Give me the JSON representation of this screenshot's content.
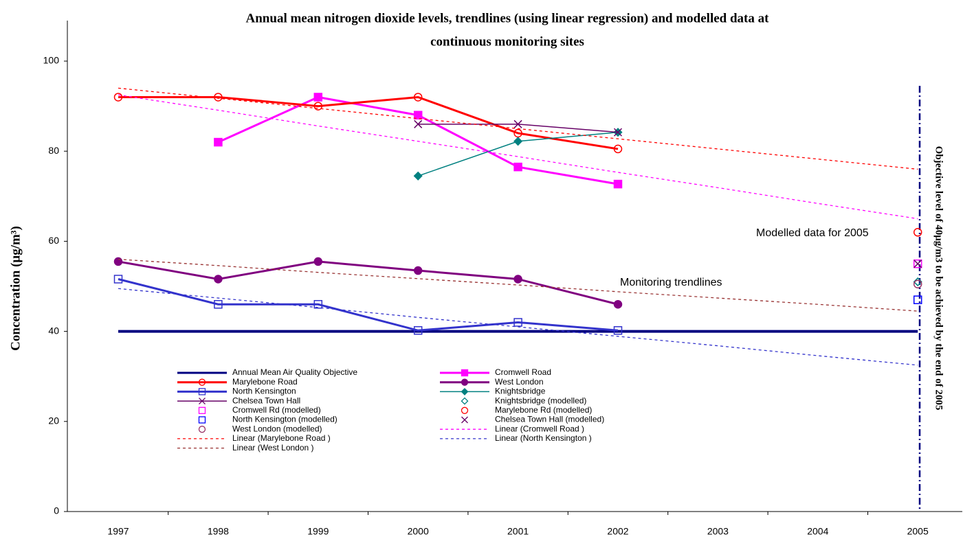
{
  "chart_data": {
    "type": "line",
    "title": [
      "Annual mean nitrogen dioxide levels, trendlines (using linear regression) and modelled data at",
      "continuous monitoring sites"
    ],
    "y_label": "Concentration (μg/m³)",
    "annotations": [
      "Modelled data for 2005",
      "Monitoring trendlines",
      "Objective level of 40μg/m3 to be achieved by the end of 2005"
    ],
    "categories": [
      "1997",
      "1998",
      "1999",
      "2000",
      "2001",
      "2002",
      "2003",
      "2004",
      "2005"
    ],
    "ylim": [
      0,
      100
    ],
    "yticks": [
      0,
      20,
      40,
      60,
      80,
      100
    ],
    "grid": false,
    "series": [
      {
        "name": "Annual Mean Air Quality Objective",
        "color": "#000080",
        "line_width": 4,
        "dash": false,
        "show_line": true,
        "marker": null,
        "marker_fill": false,
        "values": [
          40,
          40,
          40,
          40,
          40,
          40,
          40,
          40,
          40
        ]
      },
      {
        "name": "Cromwell Road",
        "color": "#ff00ff",
        "line_width": 3,
        "dash": false,
        "show_line": true,
        "marker": "square",
        "marker_fill": true,
        "values": [
          null,
          82,
          92,
          88,
          76.5,
          72.7,
          null,
          null,
          null
        ]
      },
      {
        "name": "Marylebone Road",
        "color": "#ff0000",
        "line_width": 3,
        "dash": false,
        "show_line": true,
        "marker": "circle",
        "marker_fill": false,
        "values": [
          92,
          92,
          90,
          92,
          84,
          80.5,
          null,
          null,
          null
        ]
      },
      {
        "name": "West London",
        "color": "#800080",
        "line_width": 3,
        "dash": false,
        "show_line": true,
        "marker": "circle",
        "marker_fill": true,
        "values": [
          55.5,
          51.6,
          55.5,
          53.5,
          51.6,
          46,
          null,
          null,
          null
        ]
      },
      {
        "name": "North Kensington",
        "color": "#3333cc",
        "line_width": 3,
        "dash": false,
        "show_line": true,
        "marker": "square",
        "marker_fill": false,
        "values": [
          51.6,
          46,
          46,
          40.2,
          42,
          40.2,
          null,
          null,
          null
        ]
      },
      {
        "name": "Knightsbridge",
        "color": "#008080",
        "line_width": 1.5,
        "dash": false,
        "show_line": true,
        "marker": "diamond",
        "marker_fill": true,
        "values": [
          null,
          null,
          null,
          74.5,
          82.2,
          84.2,
          null,
          null,
          null
        ]
      },
      {
        "name": "Chelsea Town Hall",
        "color": "#660066",
        "line_width": 1.5,
        "dash": false,
        "show_line": true,
        "marker": "x",
        "marker_fill": false,
        "values": [
          null,
          null,
          null,
          86,
          86,
          84.2,
          null,
          null,
          null
        ]
      },
      {
        "name": "Knightsbridge (modelled)",
        "color": "#008080",
        "line_width": 1,
        "dash": false,
        "show_line": false,
        "marker": "diamond",
        "marker_fill": false,
        "values": [
          null,
          null,
          null,
          null,
          null,
          null,
          null,
          null,
          51
        ]
      },
      {
        "name": "Cromwell Rd (modelled)",
        "color": "#ff00ff",
        "line_width": 1,
        "dash": false,
        "show_line": false,
        "marker": "square",
        "marker_fill": false,
        "values": [
          null,
          null,
          null,
          null,
          null,
          null,
          null,
          null,
          55
        ]
      },
      {
        "name": "Marylebone Rd (modelled)",
        "color": "#ff0000",
        "line_width": 1,
        "dash": false,
        "show_line": false,
        "marker": "circle",
        "marker_fill": false,
        "values": [
          null,
          null,
          null,
          null,
          null,
          null,
          null,
          null,
          62
        ]
      },
      {
        "name": "North Kensington (modelled)",
        "color": "#0000ff",
        "line_width": 1,
        "dash": false,
        "show_line": false,
        "marker": "square",
        "marker_fill": false,
        "values": [
          null,
          null,
          null,
          null,
          null,
          null,
          null,
          null,
          47
        ]
      },
      {
        "name": "Chelsea Town Hall (modelled)",
        "color": "#660066",
        "line_width": 1,
        "dash": false,
        "show_line": false,
        "marker": "x",
        "marker_fill": false,
        "values": [
          null,
          null,
          null,
          null,
          null,
          null,
          null,
          null,
          55
        ]
      },
      {
        "name": "West London (modelled)",
        "color": "#993366",
        "line_width": 1,
        "dash": false,
        "show_line": false,
        "marker": "circle",
        "marker_fill": false,
        "values": [
          null,
          null,
          null,
          null,
          null,
          null,
          null,
          null,
          50.5
        ]
      },
      {
        "name": "Linear (Cromwell Road )",
        "color": "#ff00ff",
        "line_width": 1.3,
        "dash": true,
        "show_line": true,
        "marker": null,
        "marker_fill": false,
        "values": [
          92.5,
          89.1,
          85.6,
          82.2,
          78.8,
          75.3,
          71.9,
          68.4,
          65
        ]
      },
      {
        "name": "Linear (Marylebone Road )",
        "color": "#ff0000",
        "line_width": 1.3,
        "dash": true,
        "show_line": true,
        "marker": null,
        "marker_fill": false,
        "values": [
          94,
          91.75,
          89.5,
          87.25,
          85,
          82.75,
          80.5,
          78.25,
          76
        ]
      },
      {
        "name": "Linear (North Kensington )",
        "color": "#3333cc",
        "line_width": 1.3,
        "dash": true,
        "show_line": true,
        "marker": null,
        "marker_fill": false,
        "values": [
          49.5,
          47.4,
          45.3,
          43.1,
          41,
          38.9,
          36.8,
          34.6,
          32.5
        ]
      },
      {
        "name": "Linear (West London )",
        "color": "#993333",
        "line_width": 1.3,
        "dash": true,
        "show_line": true,
        "marker": null,
        "marker_fill": false,
        "values": [
          56,
          54.6,
          53.1,
          51.7,
          50.3,
          48.8,
          47.4,
          46,
          44.5
        ]
      }
    ]
  }
}
